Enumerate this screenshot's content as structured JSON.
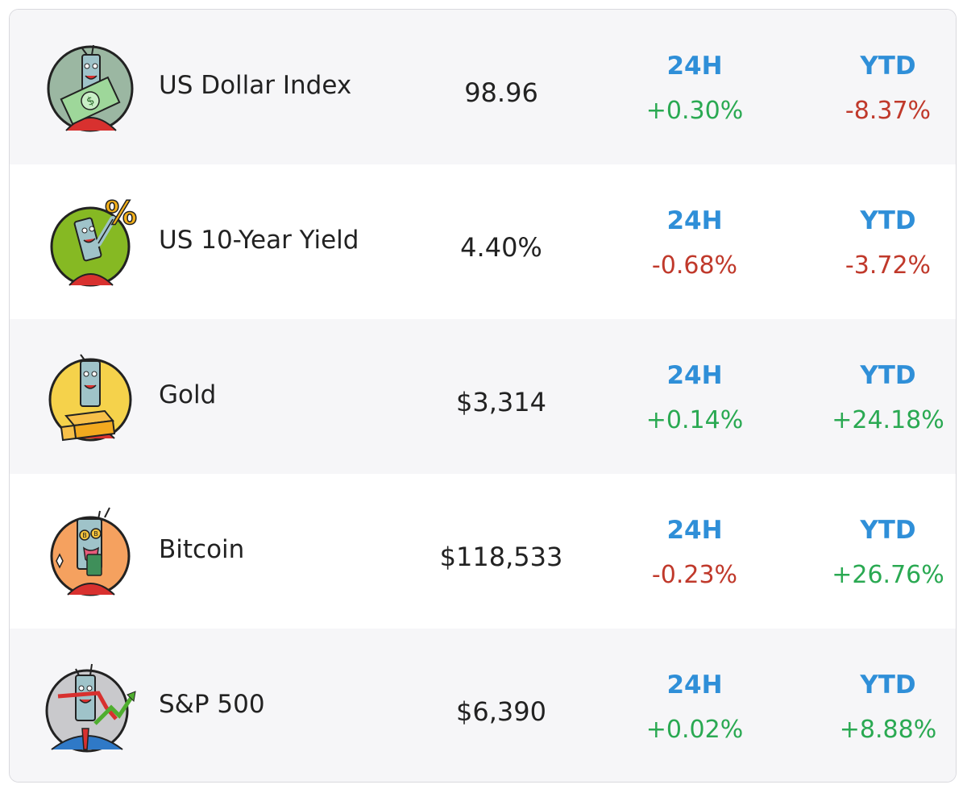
{
  "rows": [
    {
      "name": "US Dollar Index",
      "price": "98.96",
      "h24_label": "24H",
      "h24_value": "+0.30%",
      "ytd_label": "YTD",
      "ytd_value": "-8.37%",
      "icon": "dollar-mascot-icon",
      "icon_bg": "#9bb7a2"
    },
    {
      "name": "US 10-Year Yield",
      "price": "4.40%",
      "h24_label": "24H",
      "h24_value": "-0.68%",
      "ytd_label": "YTD",
      "ytd_value": "-3.72%",
      "icon": "percent-mascot-icon",
      "icon_bg": "#86b923"
    },
    {
      "name": "Gold",
      "price": "$3,314",
      "h24_label": "24H",
      "h24_value": "+0.14%",
      "ytd_label": "YTD",
      "ytd_value": "+24.18%",
      "icon": "gold-bars-mascot-icon",
      "icon_bg": "#f5d24b"
    },
    {
      "name": "Bitcoin",
      "price": "$118,533",
      "h24_label": "24H",
      "h24_value": "-0.23%",
      "ytd_label": "YTD",
      "ytd_value": "+26.76%",
      "icon": "bitcoin-mascot-icon",
      "icon_bg": "#f5a15f"
    },
    {
      "name": "S&P 500",
      "price": "$6,390",
      "h24_label": "24H",
      "h24_value": "+0.02%",
      "ytd_label": "YTD",
      "ytd_value": "+8.88%",
      "icon": "stock-chart-mascot-icon",
      "icon_bg": "#c9c9cc"
    }
  ],
  "colors": {
    "label_blue": "#2f8fd8",
    "positive": "#2aa952",
    "negative": "#c0392b",
    "row_shade": "#f6f6f8"
  }
}
